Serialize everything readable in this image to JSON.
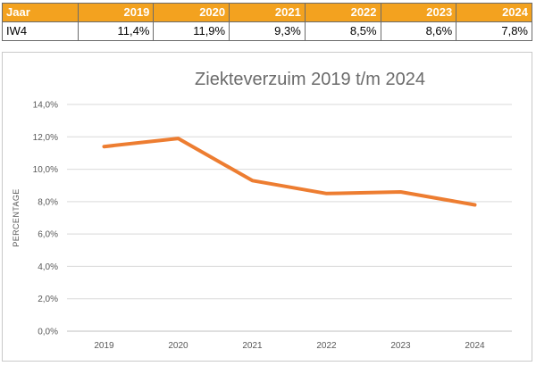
{
  "table": {
    "header_label": "Jaar",
    "years": [
      "2019",
      "2020",
      "2021",
      "2022",
      "2023",
      "2024"
    ],
    "row_label": "IW4",
    "values": [
      "11,4%",
      "11,9%",
      "9,3%",
      "8,5%",
      "8,6%",
      "7,8%"
    ],
    "header_color": "#F3A21F"
  },
  "chart_data": {
    "type": "line",
    "title": "Ziekteverzuim 2019 t/m 2024",
    "xlabel": "",
    "ylabel": "PERCENTAGE",
    "categories": [
      "2019",
      "2020",
      "2021",
      "2022",
      "2023",
      "2024"
    ],
    "series": [
      {
        "values": [
          11.4,
          11.9,
          9.3,
          8.5,
          8.6,
          7.8
        ],
        "color": "#ED7D31"
      }
    ],
    "ylim": [
      0,
      14
    ],
    "yticks": [
      0,
      2,
      4,
      6,
      8,
      10,
      12,
      14
    ],
    "ytick_labels": [
      "0,0%",
      "2,0%",
      "4,0%",
      "6,0%",
      "8,0%",
      "10,0%",
      "12,0%",
      "14,0%"
    ],
    "grid": true,
    "legend": "none"
  }
}
